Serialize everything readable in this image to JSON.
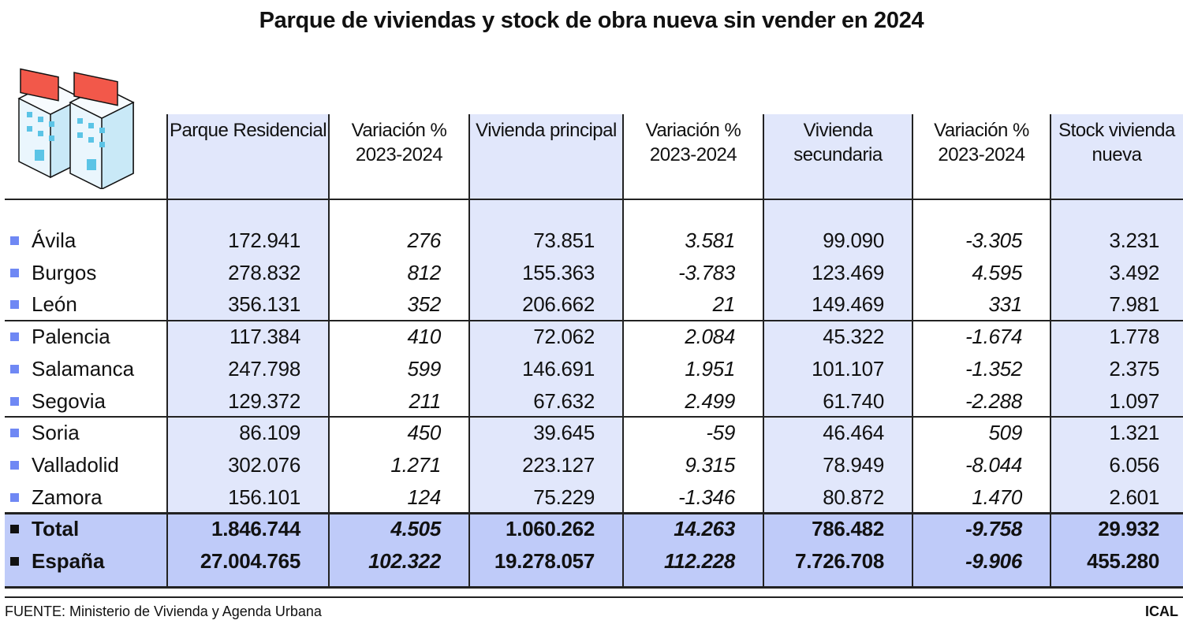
{
  "title": "Parque de viviendas y stock de obra nueva sin vender en 2024",
  "icon": "buildings-with-billboards-icon",
  "colors": {
    "shade": "#e1e7fb",
    "total_shade": "#bfcbf9",
    "bullet": "#6f88f4",
    "billboard": "#f2584a"
  },
  "columns": [
    {
      "label": "Parque Residencial",
      "italic": false
    },
    {
      "label": "Variación % 2023-2024",
      "italic": true
    },
    {
      "label": "Vivienda principal",
      "italic": false
    },
    {
      "label": "Variación % 2023-2024",
      "italic": true
    },
    {
      "label": "Vivienda secundaria",
      "italic": false
    },
    {
      "label": "Variación % 2023-2024",
      "italic": true
    },
    {
      "label": "Stock vivienda nueva",
      "italic": false
    }
  ],
  "rows": [
    {
      "name": "Ávila",
      "values": [
        "172.941",
        "276",
        "73.851",
        "3.581",
        "99.090",
        "-3.305",
        "3.231"
      ]
    },
    {
      "name": "Burgos",
      "values": [
        "278.832",
        "812",
        "155.363",
        "-3.783",
        "123.469",
        "4.595",
        "3.492"
      ]
    },
    {
      "name": "León",
      "values": [
        "356.131",
        "352",
        "206.662",
        "21",
        "149.469",
        "331",
        "7.981"
      ]
    },
    {
      "name": "Palencia",
      "values": [
        "117.384",
        "410",
        "72.062",
        "2.084",
        "45.322",
        "-1.674",
        "1.778"
      ]
    },
    {
      "name": "Salamanca",
      "values": [
        "247.798",
        "599",
        "146.691",
        "1.951",
        "101.107",
        "-1.352",
        "2.375"
      ]
    },
    {
      "name": "Segovia",
      "values": [
        "129.372",
        "211",
        "67.632",
        "2.499",
        "61.740",
        "-2.288",
        "1.097"
      ]
    },
    {
      "name": "Soria",
      "values": [
        "86.109",
        "450",
        "39.645",
        "-59",
        "46.464",
        "509",
        "1.321"
      ]
    },
    {
      "name": "Valladolid",
      "values": [
        "302.076",
        "1.271",
        "223.127",
        "9.315",
        "78.949",
        "-8.044",
        "6.056"
      ]
    },
    {
      "name": "Zamora",
      "values": [
        "156.101",
        "124",
        "75.229",
        "-1.346",
        "80.872",
        "1.470",
        "2.601"
      ]
    }
  ],
  "totals": [
    {
      "name": "Total",
      "values": [
        "1.846.744",
        "4.505",
        "1.060.262",
        "14.263",
        "786.482",
        "-9.758",
        "29.932"
      ]
    },
    {
      "name": "España",
      "values": [
        "27.004.765",
        "102.322",
        "19.278.057",
        "112.228",
        "7.726.708",
        "-9.906",
        "455.280"
      ]
    }
  ],
  "footer": {
    "source": "FUENTE: Ministerio de Vivienda y Agenda Urbana",
    "credit": "ICAL"
  }
}
